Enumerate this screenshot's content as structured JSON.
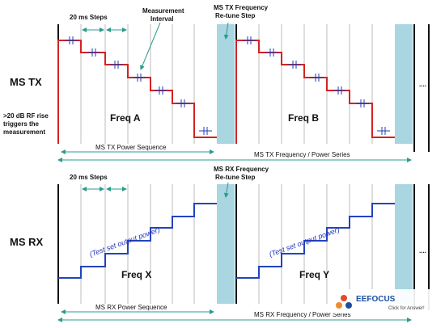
{
  "tx": {
    "side_label": "MS TX",
    "trigger_label": [
      ">20 dB RF rise",
      "triggers the",
      "measurement"
    ],
    "steps_label": "20 ms Steps",
    "interval_label": [
      "Measurement",
      "Interval"
    ],
    "retune_label": [
      "MS TX Frequency",
      "Re-tune Step"
    ],
    "freq_a": "Freq A",
    "freq_b": "Freq B",
    "power_sequence": "MS TX Power Sequence",
    "series": "MS TX Frequency / Power Series",
    "ellipsis": "....",
    "colors": {
      "waveform": "#d42222",
      "marker": "#1d3fb0"
    }
  },
  "rx": {
    "side_label": "MS RX",
    "steps_label": "20 ms Steps",
    "retune_label": [
      "MS RX Frequency",
      "Re-tune Step"
    ],
    "freq_x": "Freq X",
    "freq_y": "Freq Y",
    "test_power_1": "(Test set output power)",
    "test_power_2": "(Test set output power)",
    "power_sequence": "MS RX Power Sequence",
    "series": "MS RX Frequency / Power Series",
    "ellipsis": "....",
    "colors": {
      "waveform": "#2244bb"
    }
  },
  "watermark": {
    "brand": "EEFOCUS",
    "tagline": "Click for Answer!"
  },
  "colors": {
    "retune_fill": "#a9d6e0",
    "arrow": "#2a9c8c",
    "grid": "#bdbdbd",
    "axis": "#111111"
  }
}
